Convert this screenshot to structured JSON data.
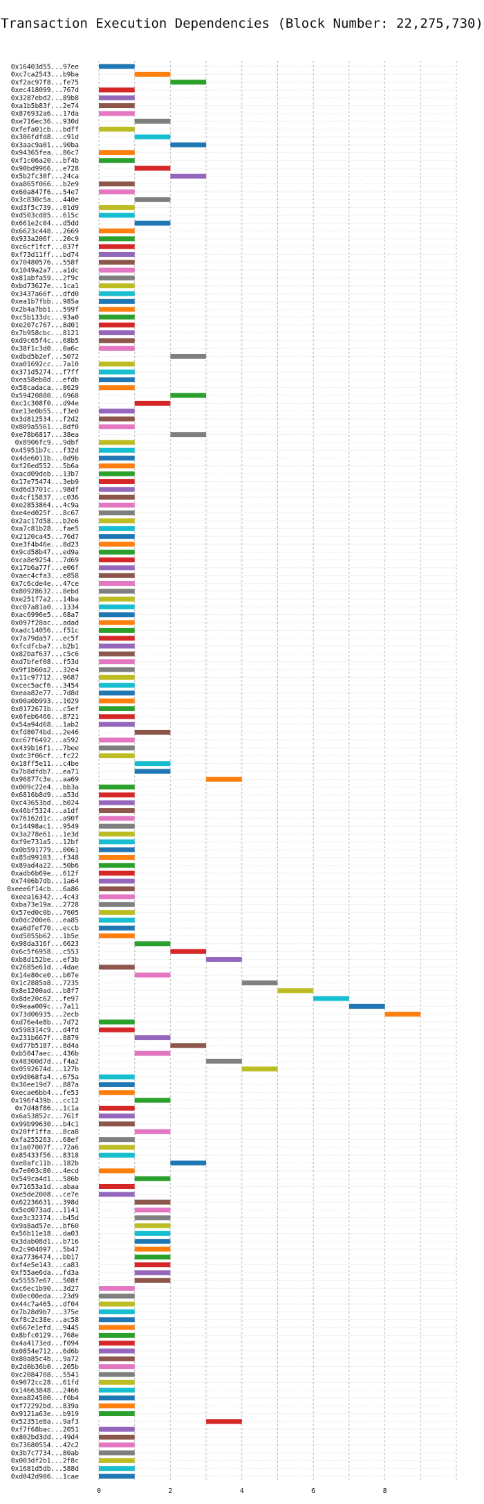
{
  "chart_data": {
    "type": "bar",
    "orientation": "horizontal",
    "title": "Transaction Execution Dependencies (Block Number: 22,275,730)",
    "xlabel": "",
    "ylabel": "",
    "xlim": [
      0,
      10
    ],
    "x_ticks": [
      "0",
      "2",
      "4",
      "6",
      "8"
    ],
    "grid": true,
    "legend": "none",
    "palette": [
      "#1f77b4",
      "#ff7f0e",
      "#2ca02c",
      "#d62728",
      "#9467bd",
      "#8c564b",
      "#e377c2",
      "#7f7f7f",
      "#bcbd22",
      "#17becf"
    ],
    "transactions": [
      [
        "0x16403d55...97ee",
        0
      ],
      [
        "0xc7ca2543...b9ba",
        1
      ],
      [
        "0xf2ac97f8...fe75",
        2
      ],
      [
        "0xec418099...767d",
        0
      ],
      [
        "0x3287ebd2...89b8",
        0
      ],
      [
        "0xa1b5b83f...2e74",
        0
      ],
      [
        "0x876932a6...17da",
        0
      ],
      [
        "0xe716ec36...930d",
        1
      ],
      [
        "0xfefa01cb...bdff",
        0
      ],
      [
        "0x306fdfd8...c91d",
        1
      ],
      [
        "0x3aac9a01...90ba",
        2
      ],
      [
        "0x94365fea...86c7",
        0
      ],
      [
        "0xf1c06a20...bf4b",
        0
      ],
      [
        "0x90bd9966...e728",
        1
      ],
      [
        "0x5b2fc30f...24ca",
        2
      ],
      [
        "0xa865f066...b2e9",
        0
      ],
      [
        "0x60a847f6...54e7",
        0
      ],
      [
        "0x3c830c5a...440e",
        1
      ],
      [
        "0xd3f5c739...01d9",
        0
      ],
      [
        "0xd503cd85...615c",
        0
      ],
      [
        "0x661e2c04...d5dd",
        1
      ],
      [
        "0x6623c448...2669",
        0
      ],
      [
        "0x933a206f...20c9",
        0
      ],
      [
        "0xc6cf1fcf...037f",
        0
      ],
      [
        "0xf73d11ff...bd74",
        0
      ],
      [
        "0x70480576...558f",
        0
      ],
      [
        "0x1049a2a7...a1dc",
        0
      ],
      [
        "0x81abfa59...2f9c",
        0
      ],
      [
        "0xbd73627e...1ca1",
        0
      ],
      [
        "0x3437a66f...dfd0",
        0
      ],
      [
        "0xea1b7fbb...985a",
        0
      ],
      [
        "0x2b4a7bb1...599f",
        0
      ],
      [
        "0xc5b133dc...93a0",
        0
      ],
      [
        "0xe207c767...8d01",
        0
      ],
      [
        "0x7b958cbc...8121",
        0
      ],
      [
        "0xd9c65f4c...68b5",
        0
      ],
      [
        "0x38f1c3d0...0a6c",
        0
      ],
      [
        "0xdbd5b2ef...5072",
        2
      ],
      [
        "0xa01692cc...7a10",
        0
      ],
      [
        "0x371d5274...f7ff",
        0
      ],
      [
        "0xea58eb8d...efdb",
        0
      ],
      [
        "0x58cadaca...8629",
        0
      ],
      [
        "0x59420880...6968",
        2
      ],
      [
        "0xc1c308f0...d94e",
        1
      ],
      [
        "0xe13e0b55...f3e0",
        0
      ],
      [
        "0x3d812534...f2d2",
        0
      ],
      [
        "0x809a5561...8df0",
        0
      ],
      [
        "0xe78b6817...38ea",
        2
      ],
      [
        "0x8906fc9...9dbf",
        0
      ],
      [
        "0x45951b7c...f32d",
        0
      ],
      [
        "0x4de6011b...0d9b",
        0
      ],
      [
        "0xf26ed552...5b6a",
        0
      ],
      [
        "0xacd09deb...13b7",
        0
      ],
      [
        "0x17e75474...3eb9",
        0
      ],
      [
        "0xd6d3701c...98df",
        0
      ],
      [
        "0x4cf15837...c036",
        0
      ],
      [
        "0xe2853864...4c9a",
        0
      ],
      [
        "0xe4ed025f...8c67",
        0
      ],
      [
        "0x2ac17d58...b2e6",
        0
      ],
      [
        "0xa7c81b28...fae5",
        0
      ],
      [
        "0x2120ca45...76d7",
        0
      ],
      [
        "0xe3f4b46e...8d23",
        0
      ],
      [
        "0x9cd58b47...ed9a",
        0
      ],
      [
        "0xca8e9254...7d69",
        0
      ],
      [
        "0x17b6a77f...e06f",
        0
      ],
      [
        "0xaec4cfa3...e858",
        0
      ],
      [
        "0x7c6cde4e...47ce",
        0
      ],
      [
        "0x80928632...8ebd",
        0
      ],
      [
        "0xe251f7a2...14ba",
        0
      ],
      [
        "0xc07a81a0...1334",
        0
      ],
      [
        "0xac6996e5...68a7",
        0
      ],
      [
        "0x097f28ac...adad",
        0
      ],
      [
        "0xadc14056...f51c",
        0
      ],
      [
        "0x7a79da57...ec5f",
        0
      ],
      [
        "0xfcdfcba7...b2b1",
        0
      ],
      [
        "0x82baf637...c5c6",
        0
      ],
      [
        "0xd7bfef08...f53d",
        0
      ],
      [
        "0x9f1b60a2...32e4",
        0
      ],
      [
        "0x11c97712...9687",
        0
      ],
      [
        "0xcec5acf6...3454",
        0
      ],
      [
        "0xeaa82e77...7d8d",
        0
      ],
      [
        "0x00a0b993...1029",
        0
      ],
      [
        "0x0172671b...c5ef",
        0
      ],
      [
        "0x6feb6466...8721",
        0
      ],
      [
        "0x54a94d68...1ab2",
        0
      ],
      [
        "0xfd8074bd...2e46",
        1
      ],
      [
        "0xc67f6492...a592",
        0
      ],
      [
        "0x439b16f1...7bee",
        0
      ],
      [
        "0xdc3f06cf...fc22",
        0
      ],
      [
        "0x18ff5e11...c4be",
        1
      ],
      [
        "0x7b8dfdb7...ea71",
        1
      ],
      [
        "0x96877c3e...aa69",
        3
      ],
      [
        "0x009c22e4...bb3a",
        0
      ],
      [
        "0x6816b8d9...a53d",
        0
      ],
      [
        "0xc43653bd...b024",
        0
      ],
      [
        "0x46bf5324...a1df",
        0
      ],
      [
        "0x76162d1c...a90f",
        0
      ],
      [
        "0x14498ac1...9549",
        0
      ],
      [
        "0x3a278e61...1e3d",
        0
      ],
      [
        "0xf9e731a5...12bf",
        0
      ],
      [
        "0x0b591779...0061",
        0
      ],
      [
        "0x85d99103...f348",
        0
      ],
      [
        "0x89ad4a22...50b6",
        0
      ],
      [
        "0xadb6b69e...612f",
        0
      ],
      [
        "0x7406b7db...1a64",
        0
      ],
      [
        "0xeee6f14cb...6a86",
        0
      ],
      [
        "0xeea16342...4c43",
        0
      ],
      [
        "0xba73e19a...2728",
        0
      ],
      [
        "0x57ed0c0b...7605",
        0
      ],
      [
        "0x0dc200e6...ea85",
        0
      ],
      [
        "0xa6dfef70...eccb",
        0
      ],
      [
        "0xd5055b62...1b5e",
        0
      ],
      [
        "0x98da316f...6623",
        1
      ],
      [
        "0x6c5f6958...c553",
        2
      ],
      [
        "0xb8d152be...ef3b",
        3
      ],
      [
        "0x2685e61d...4dae",
        0
      ],
      [
        "0x14e80ce0...b07e",
        1
      ],
      [
        "0x1c2885a8...7235",
        4
      ],
      [
        "0x8e1200ad...b8f7",
        5
      ],
      [
        "0x8de20c62...fe97",
        6
      ],
      [
        "0x9eaa009c...7a11",
        7
      ],
      [
        "0x73d06935...2ecb",
        8
      ],
      [
        "0xd76e4e8b...7d72",
        0
      ],
      [
        "0x598314c9...d4fd",
        0
      ],
      [
        "0x231b667f...8879",
        1
      ],
      [
        "0xd77b5187...8d4a",
        2
      ],
      [
        "0xb5047aec...436b",
        1
      ],
      [
        "0x48300d7d...f4a2",
        3
      ],
      [
        "0x0592674d...127b",
        4
      ],
      [
        "0x9d068fa4...675a",
        0
      ],
      [
        "0x36ee19d7...887a",
        0
      ],
      [
        "0xecae6bb4...fe53",
        0
      ],
      [
        "0x196f439b...cc12",
        1
      ],
      [
        "0x7d48f86...1c1a",
        0
      ],
      [
        "0x6a53852c...761f",
        0
      ],
      [
        "0x99b99630...b4c1",
        0
      ],
      [
        "0x20ff1ffa...8ca8",
        1
      ],
      [
        "0xfa255263...68ef",
        0
      ],
      [
        "0x1a07007f...72a6",
        0
      ],
      [
        "0x85433f56...8318",
        0
      ],
      [
        "0xe8afc11b...182b",
        2
      ],
      [
        "0x7e003c80...4ecd",
        0
      ],
      [
        "0x549ca4d1...586b",
        1
      ],
      [
        "0x71653a1d...abaa",
        0
      ],
      [
        "0xe5de2008...ce7e",
        0
      ],
      [
        "0x62236631...398d",
        1
      ],
      [
        "0x5ed073ad...1141",
        1
      ],
      [
        "0xe3c32374...b45d",
        1
      ],
      [
        "0x9a8ad57e...bf60",
        1
      ],
      [
        "0x56b11e18...da03",
        1
      ],
      [
        "0x3dab08d1...b716",
        1
      ],
      [
        "0x2c904097...5b47",
        1
      ],
      [
        "0xa7736474...bb17",
        1
      ],
      [
        "0xf4e5e143...ca83",
        1
      ],
      [
        "0xf55ae6da...fd3a",
        1
      ],
      [
        "0x55557e67...508f",
        1
      ],
      [
        "0xc6ec1b90...3d27",
        0
      ],
      [
        "0x0ec00eda...23d9",
        0
      ],
      [
        "0x44c7a465...df04",
        0
      ],
      [
        "0x7b28d9b7...375e",
        0
      ],
      [
        "0xf8c2c38e...ac58",
        0
      ],
      [
        "0x667e1efd...9445",
        0
      ],
      [
        "0x8bfc0129...768e",
        0
      ],
      [
        "0x4a4173ed...f094",
        0
      ],
      [
        "0x0854e712...6d6b",
        0
      ],
      [
        "0x80a85c4b...9a72",
        0
      ],
      [
        "0x2d0b36b0...205b",
        0
      ],
      [
        "0xc2084708...5541",
        0
      ],
      [
        "0x9072cc28...61fd",
        0
      ],
      [
        "0x14663848...2466",
        0
      ],
      [
        "0xea824500...f0b4",
        0
      ],
      [
        "0xf72292bd...839a",
        0
      ],
      [
        "0x9121a63e...b919",
        0
      ],
      [
        "0x52351e8a...9af3",
        3
      ],
      [
        "0xf7f68bac...2051",
        0
      ],
      [
        "0x802bd3dd...49d4",
        0
      ],
      [
        "0x73680554...42c2",
        0
      ],
      [
        "0x3b7c7734...80ab",
        0
      ],
      [
        "0x003df2b1...2f8c",
        0
      ],
      [
        "0x1681d5db...588d",
        0
      ],
      [
        "0xd042d906...1cae",
        0
      ]
    ]
  }
}
